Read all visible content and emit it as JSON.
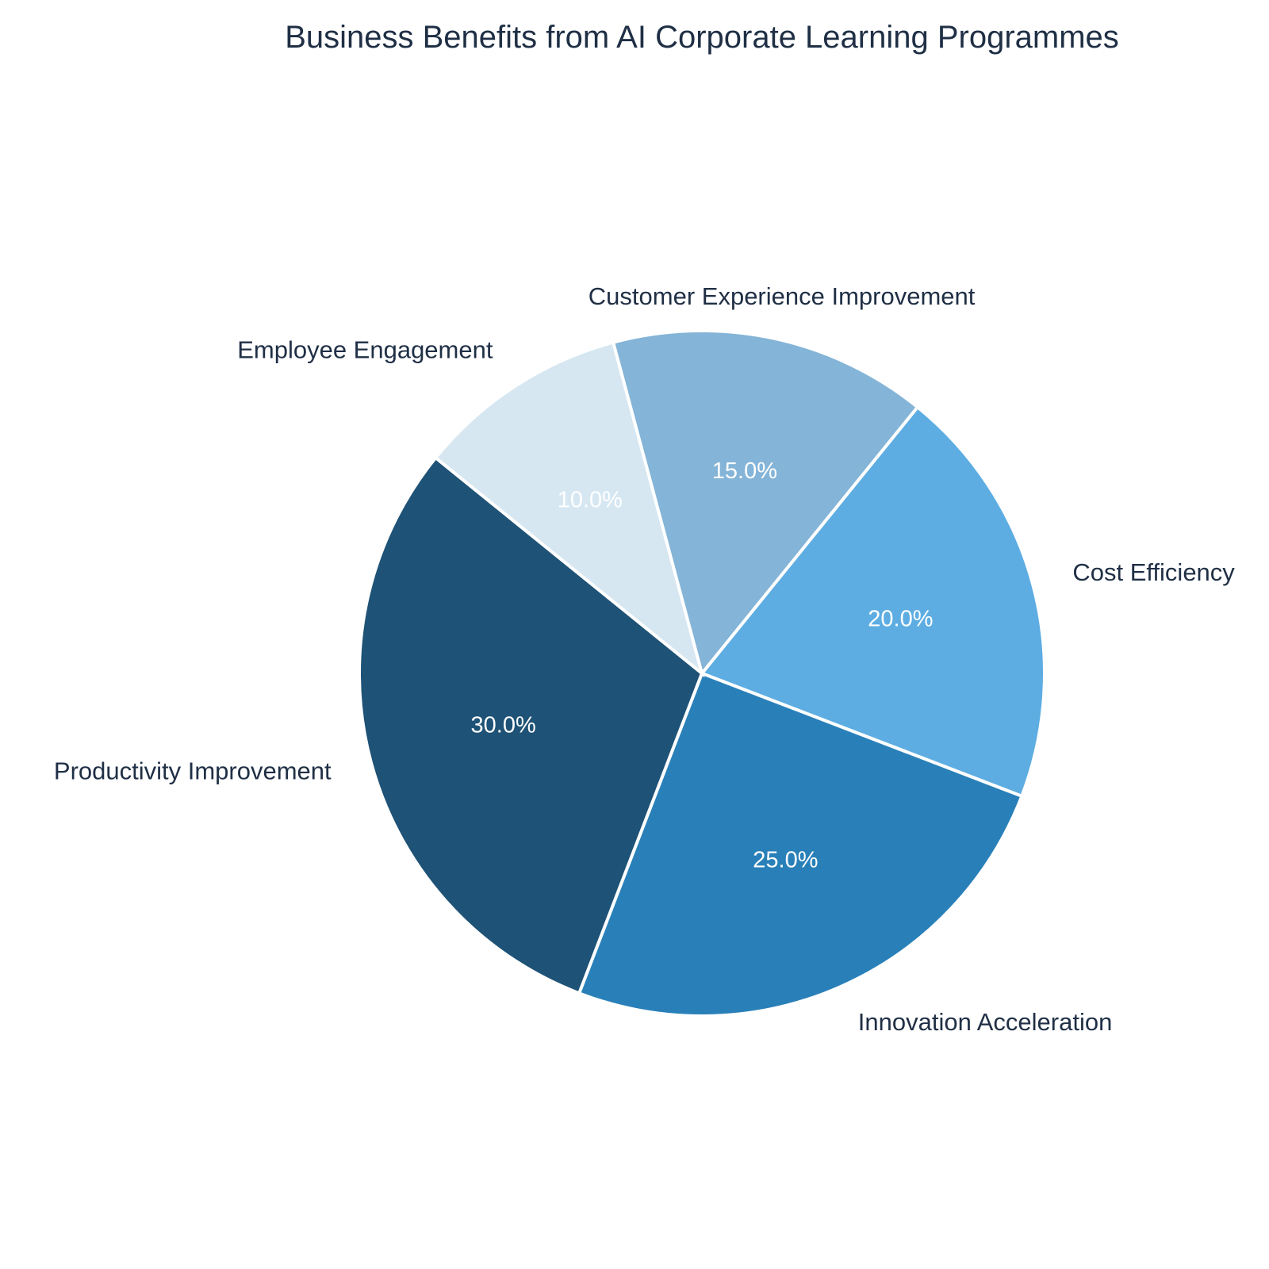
{
  "chart_data": {
    "type": "pie",
    "title": "Business Benefits from AI Corporate Learning Programmes",
    "slices": [
      {
        "label": "Cost Efficiency",
        "value": 20.0,
        "display": "20.0%",
        "color": "#5dade2"
      },
      {
        "label": "Innovation Acceleration",
        "value": 25.0,
        "display": "25.0%",
        "color": "#2980b9"
      },
      {
        "label": "Productivity Improvement",
        "value": 30.0,
        "display": "30.0%",
        "color": "#1e5276"
      },
      {
        "label": "Employee Engagement",
        "value": 10.0,
        "display": "10.0%",
        "color": "#d6e7f2"
      },
      {
        "label": "Customer Experience Improvement",
        "value": 15.0,
        "display": "15.0%",
        "color": "#84b4d7"
      }
    ],
    "legend": "none",
    "label_position": "outside"
  }
}
